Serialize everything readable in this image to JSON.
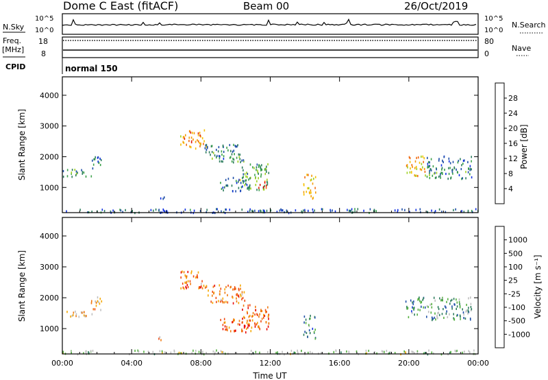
{
  "header": {
    "title": "Dome C East (fitACF)",
    "beam": "Beam 00",
    "date": "26/Oct/2019"
  },
  "strip1": {
    "left_label": "N.Sky",
    "left_top": "10^5",
    "left_bottom": "10^0",
    "right_top": "10^5",
    "right_bottom": "10^0",
    "right_label": "N.Search"
  },
  "strip2": {
    "left_label_1": "Freq.",
    "left_label_2": "[MHz]",
    "left_top": "18",
    "left_bottom": "8",
    "right_top": "80",
    "right_bottom": "0",
    "right_label": "Nave"
  },
  "cpid": {
    "label": "CPID",
    "value": "normal 150"
  },
  "colors": {
    "frame": "#000000",
    "power": [
      "#1030e0",
      "#1f4fa8",
      "#2e7d5e",
      "#3ba14a",
      "#9ed020",
      "#f5c000",
      "#f59a00",
      "#f06a10",
      "#e02010",
      "#e80000"
    ],
    "velocity": [
      "#e80000",
      "#f04a10",
      "#f07a10",
      "#f5a800",
      "#bfbfbf",
      "#bfbfbf",
      "#55b040",
      "#2e7d5e",
      "#1f4fa8",
      "#1030e0"
    ]
  },
  "chart_data": [
    {
      "type": "heatmap",
      "name": "Power panel",
      "xlabel": "",
      "ylabel": "Slant Range [km]",
      "x_ticks": [
        "00:00",
        "04:00",
        "08:00",
        "12:00",
        "16:00",
        "20:00",
        "00:00"
      ],
      "xlim": [
        0,
        24
      ],
      "ylim": [
        180,
        4600
      ],
      "y_ticks": [
        1000,
        2000,
        3000,
        4000
      ],
      "colorbar": {
        "label": "Power [dB]",
        "range": [
          0,
          32
        ],
        "ticks": [
          "4",
          "8",
          "12",
          "16",
          "20",
          "24",
          "28"
        ]
      },
      "regions": [
        {
          "t0": 0.0,
          "t1": 1.7,
          "r0": 1380,
          "r1": 1620,
          "level": 0.25
        },
        {
          "t0": 1.6,
          "t1": 2.3,
          "r0": 1600,
          "r1": 2050,
          "level": 0.2
        },
        {
          "t0": 5.5,
          "t1": 5.9,
          "r0": 650,
          "r1": 800,
          "level": 0.1
        },
        {
          "t0": 6.8,
          "t1": 8.3,
          "r0": 2300,
          "r1": 2900,
          "level": 0.65
        },
        {
          "t0": 8.2,
          "t1": 10.5,
          "r0": 1850,
          "r1": 2450,
          "level": 0.25
        },
        {
          "t0": 9.0,
          "t1": 10.8,
          "r0": 900,
          "r1": 1350,
          "level": 0.2
        },
        {
          "t0": 10.2,
          "t1": 11.9,
          "r0": 950,
          "r1": 1800,
          "level": 0.35
        },
        {
          "t0": 11.2,
          "t1": 11.8,
          "r0": 980,
          "r1": 1200,
          "level": 0.9
        },
        {
          "t0": 13.9,
          "t1": 14.6,
          "r0": 650,
          "r1": 1450,
          "level": 0.55
        },
        {
          "t0": 17.8,
          "t1": 18.6,
          "r0": 250,
          "r1": 300,
          "level": 0.4
        },
        {
          "t0": 19.8,
          "t1": 21.0,
          "r0": 1400,
          "r1": 2050,
          "level": 0.6
        },
        {
          "t0": 21.0,
          "t1": 23.6,
          "r0": 1300,
          "r1": 2050,
          "level": 0.25
        },
        {
          "t0": 0.0,
          "t1": 24.0,
          "r0": 200,
          "r1": 330,
          "level": 0.15
        }
      ]
    },
    {
      "type": "heatmap",
      "name": "Velocity panel",
      "xlabel": "Time UT",
      "ylabel": "Slant Range [km]",
      "x_ticks": [
        "00:00",
        "04:00",
        "08:00",
        "12:00",
        "16:00",
        "20:00",
        "00:00"
      ],
      "xlim": [
        0,
        24
      ],
      "ylim": [
        180,
        4600
      ],
      "y_ticks": [
        1000,
        2000,
        3000,
        4000
      ],
      "colorbar": {
        "label": "Velocity [m s⁻¹]",
        "ticks": [
          "-1000",
          "-500",
          "-100",
          "-25",
          "25",
          "100",
          "500",
          "1000"
        ]
      },
      "regions": [
        {
          "t0": 0.0,
          "t1": 1.7,
          "r0": 1380,
          "r1": 1620,
          "level": 0.4
        },
        {
          "t0": 1.6,
          "t1": 2.3,
          "r0": 1600,
          "r1": 2050,
          "level": 0.3
        },
        {
          "t0": 5.5,
          "t1": 5.9,
          "r0": 650,
          "r1": 800,
          "level": 0.3
        },
        {
          "t0": 6.8,
          "t1": 8.3,
          "r0": 2300,
          "r1": 2900,
          "level": 0.25
        },
        {
          "t0": 8.2,
          "t1": 10.5,
          "r0": 1850,
          "r1": 2450,
          "level": 0.25
        },
        {
          "t0": 9.0,
          "t1": 10.8,
          "r0": 900,
          "r1": 1350,
          "level": 0.15
        },
        {
          "t0": 10.2,
          "t1": 11.9,
          "r0": 950,
          "r1": 1800,
          "level": 0.2
        },
        {
          "t0": 13.9,
          "t1": 14.6,
          "r0": 650,
          "r1": 1450,
          "level": 0.75
        },
        {
          "t0": 17.8,
          "t1": 18.6,
          "r0": 250,
          "r1": 300,
          "level": 0.7
        },
        {
          "t0": 19.8,
          "t1": 21.0,
          "r0": 1400,
          "r1": 2050,
          "level": 0.75
        },
        {
          "t0": 21.0,
          "t1": 23.6,
          "r0": 1300,
          "r1": 2050,
          "level": 0.7
        },
        {
          "t0": 0.0,
          "t1": 24.0,
          "r0": 200,
          "r1": 330,
          "level": 0.55
        }
      ]
    }
  ]
}
